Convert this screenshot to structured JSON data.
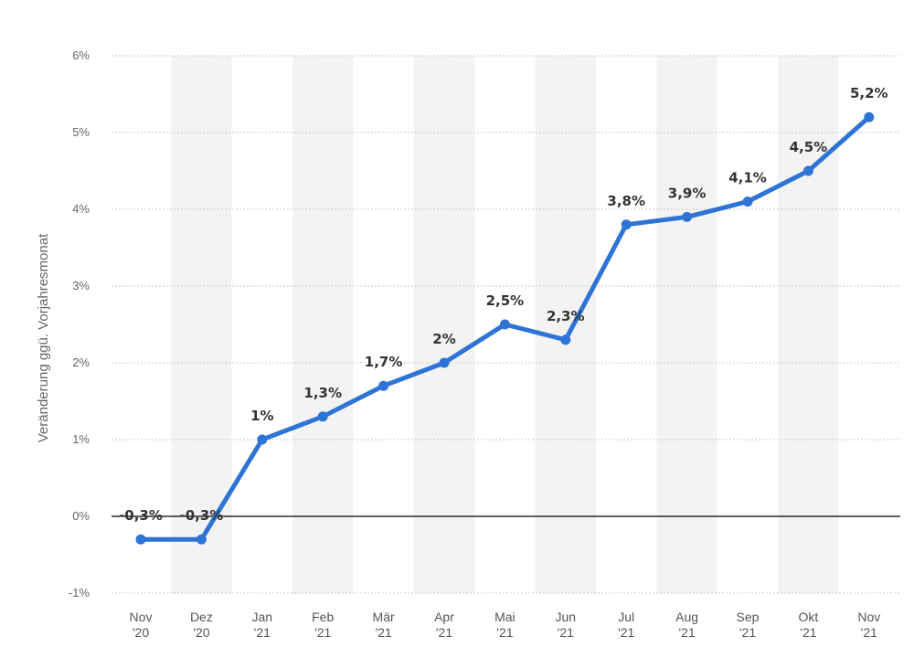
{
  "chart_data": {
    "type": "line",
    "title": "",
    "xlabel": "",
    "ylabel": "Veränderung ggü. Vorjahresmonat",
    "categories": [
      [
        "Nov",
        "'20"
      ],
      [
        "Dez",
        "'20"
      ],
      [
        "Jan",
        "'21"
      ],
      [
        "Feb",
        "'21"
      ],
      [
        "Mär",
        "'21"
      ],
      [
        "Apr",
        "'21"
      ],
      [
        "Mai",
        "'21"
      ],
      [
        "Jun",
        "'21"
      ],
      [
        "Jul",
        "'21"
      ],
      [
        "Aug",
        "'21"
      ],
      [
        "Sep",
        "'21"
      ],
      [
        "Okt",
        "'21"
      ],
      [
        "Nov",
        "'21"
      ]
    ],
    "series": [
      {
        "values": [
          -0.3,
          -0.3,
          1,
          1.3,
          1.7,
          2,
          2.5,
          2.3,
          3.8,
          3.9,
          4.1,
          4.5,
          5.2
        ],
        "labels": [
          "-0,3%",
          "-0,3%",
          "1%",
          "1,3%",
          "1,7%",
          "2%",
          "2,5%",
          "2,3%",
          "3,8%",
          "3,9%",
          "4,1%",
          "4,5%",
          "5,2%"
        ],
        "color": "#2e74d6"
      }
    ],
    "ylim": [
      -1,
      6
    ],
    "yticks": [
      -1,
      0,
      1,
      2,
      3,
      4,
      5,
      6
    ],
    "ytick_labels": [
      "-1%",
      "0%",
      "1%",
      "2%",
      "3%",
      "4%",
      "5%",
      "6%"
    ],
    "grid": true,
    "zero_line": true,
    "band_color": "#f3f3f3"
  }
}
